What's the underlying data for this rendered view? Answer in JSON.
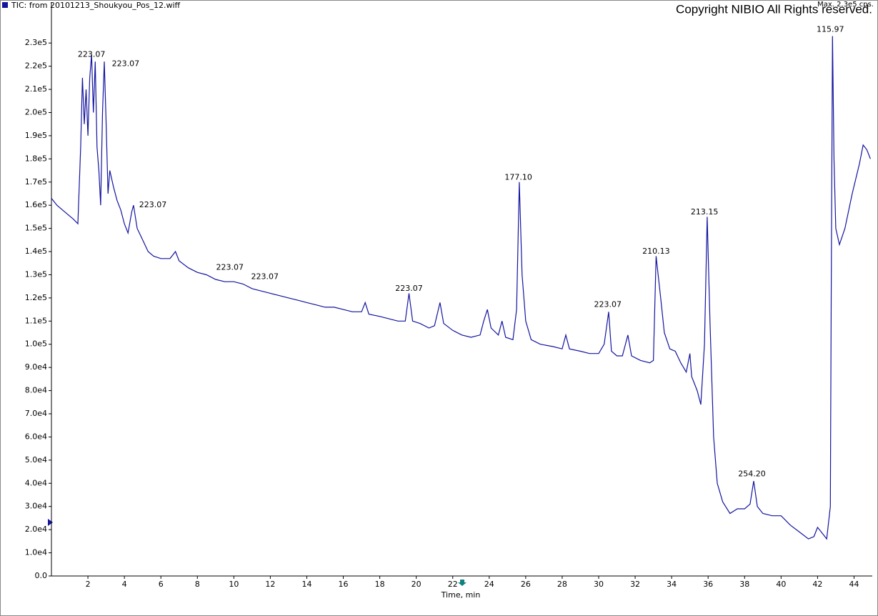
{
  "chart_data": {
    "type": "line",
    "title": "TIC: from 20101213_Shoukyou_Pos_12.wiff",
    "copyright": "Copyright NIBIO All Rights reserved.",
    "max_label": "Max. 2.3e5 cps.",
    "x_label": "Time, min",
    "xlim": [
      0,
      45
    ],
    "xticks": [
      2,
      4,
      6,
      8,
      10,
      12,
      14,
      16,
      18,
      20,
      22,
      24,
      26,
      28,
      30,
      32,
      34,
      36,
      38,
      40,
      42,
      44
    ],
    "ylim": [
      0,
      235000
    ],
    "yticks": [
      {
        "value": 0,
        "label": "0.0"
      },
      {
        "value": 10000,
        "label": "1.0e4"
      },
      {
        "value": 20000,
        "label": "2.0e4"
      },
      {
        "value": 30000,
        "label": "3.0e4"
      },
      {
        "value": 40000,
        "label": "4.0e4"
      },
      {
        "value": 50000,
        "label": "5.0e4"
      },
      {
        "value": 60000,
        "label": "6.0e4"
      },
      {
        "value": 70000,
        "label": "7.0e4"
      },
      {
        "value": 80000,
        "label": "8.0e4"
      },
      {
        "value": 90000,
        "label": "9.0e4"
      },
      {
        "value": 100000,
        "label": "1.0e5"
      },
      {
        "value": 110000,
        "label": "1.1e5"
      },
      {
        "value": 120000,
        "label": "1.2e5"
      },
      {
        "value": 130000,
        "label": "1.3e5"
      },
      {
        "value": 140000,
        "label": "1.4e5"
      },
      {
        "value": 150000,
        "label": "1.5e5"
      },
      {
        "value": 160000,
        "label": "1.6e5"
      },
      {
        "value": 170000,
        "label": "1.7e5"
      },
      {
        "value": 180000,
        "label": "1.8e5"
      },
      {
        "value": 190000,
        "label": "1.9e5"
      },
      {
        "value": 200000,
        "label": "2.0e5"
      },
      {
        "value": 210000,
        "label": "2.1e5"
      },
      {
        "value": 220000,
        "label": "2.2e5"
      },
      {
        "value": 230000,
        "label": "2.3e5"
      }
    ],
    "series": [
      {
        "name": "TIC",
        "color": "#1414a0",
        "x": [
          0.0,
          0.3,
          0.6,
          0.9,
          1.2,
          1.45,
          1.6,
          1.7,
          1.8,
          1.9,
          2.0,
          2.1,
          2.2,
          2.3,
          2.4,
          2.5,
          2.6,
          2.7,
          2.8,
          2.9,
          3.0,
          3.1,
          3.2,
          3.4,
          3.6,
          3.8,
          4.0,
          4.2,
          4.4,
          4.5,
          4.7,
          5.0,
          5.3,
          5.6,
          6.0,
          6.5,
          6.8,
          7.0,
          7.5,
          8.0,
          8.5,
          9.0,
          9.5,
          10.0,
          10.5,
          11.0,
          11.5,
          12.0,
          12.5,
          13.0,
          13.5,
          14.0,
          14.5,
          15.0,
          15.5,
          16.0,
          16.5,
          17.0,
          17.2,
          17.4,
          18.0,
          18.5,
          19.0,
          19.4,
          19.6,
          19.8,
          20.2,
          20.7,
          21.0,
          21.3,
          21.5,
          22.0,
          22.5,
          23.0,
          23.5,
          23.7,
          23.9,
          24.1,
          24.5,
          24.7,
          24.9,
          25.3,
          25.5,
          25.65,
          25.8,
          26.0,
          26.3,
          26.8,
          27.5,
          28.0,
          28.2,
          28.4,
          29.0,
          29.5,
          30.0,
          30.3,
          30.55,
          30.7,
          31.0,
          31.3,
          31.6,
          31.8,
          32.3,
          32.8,
          33.0,
          33.15,
          33.4,
          33.6,
          33.9,
          34.2,
          34.5,
          34.8,
          35.0,
          35.1,
          35.4,
          35.6,
          35.8,
          35.95,
          36.1,
          36.3,
          36.5,
          36.8,
          37.2,
          37.6,
          38.0,
          38.3,
          38.5,
          38.7,
          39.0,
          39.5,
          40.0,
          40.5,
          41.0,
          41.5,
          41.8,
          42.0,
          42.3,
          42.5,
          42.7,
          42.75,
          42.82,
          42.9,
          43.0,
          43.2,
          43.5,
          43.9,
          44.3,
          44.5,
          44.7,
          44.9
        ],
        "values": [
          163000,
          160000,
          158000,
          156000,
          154000,
          152000,
          185000,
          215000,
          195000,
          210000,
          190000,
          215000,
          225000,
          200000,
          222000,
          185000,
          175000,
          160000,
          200000,
          222000,
          195000,
          165000,
          175000,
          168000,
          162000,
          158000,
          152000,
          148000,
          157000,
          160000,
          150000,
          145000,
          140000,
          138000,
          137000,
          137000,
          140000,
          136000,
          133000,
          131000,
          130000,
          128000,
          127000,
          127000,
          126000,
          124000,
          123000,
          122000,
          121000,
          120000,
          119000,
          118000,
          117000,
          116000,
          116000,
          115000,
          114000,
          114000,
          118000,
          113000,
          112000,
          111000,
          110000,
          110000,
          122000,
          110000,
          109000,
          107000,
          108000,
          118000,
          109000,
          106000,
          104000,
          103000,
          104000,
          110000,
          115000,
          107000,
          104000,
          110000,
          103000,
          102000,
          115000,
          170000,
          130000,
          110000,
          102000,
          100000,
          99000,
          98000,
          104000,
          98000,
          97000,
          96000,
          96000,
          100000,
          114000,
          97000,
          95000,
          95000,
          104000,
          95000,
          93000,
          92000,
          93000,
          138000,
          120000,
          105000,
          98000,
          97000,
          92000,
          88000,
          96000,
          86000,
          80000,
          74000,
          100000,
          155000,
          110000,
          60000,
          40000,
          32000,
          27000,
          29000,
          29000,
          31000,
          41000,
          30000,
          27000,
          26000,
          26000,
          22000,
          19000,
          16000,
          17000,
          21000,
          18000,
          16000,
          30000,
          120000,
          233000,
          180000,
          150000,
          143000,
          150000,
          165000,
          178000,
          186000,
          184000,
          180000
        ]
      }
    ],
    "annotations": [
      {
        "text": "223.07",
        "x": 2.2,
        "y": 225000
      },
      {
        "text": "223.07",
        "x": 4.07,
        "y": 221000
      },
      {
        "text": "223.07",
        "x": 5.56,
        "y": 160000
      },
      {
        "text": "223.07",
        "x": 9.78,
        "y": 133000
      },
      {
        "text": "223.07",
        "x": 11.7,
        "y": 129000
      },
      {
        "text": "223.07",
        "x": 19.6,
        "y": 124000
      },
      {
        "text": "177.10",
        "x": 25.6,
        "y": 172000
      },
      {
        "text": "223.07",
        "x": 30.5,
        "y": 117000
      },
      {
        "text": "210.13",
        "x": 33.15,
        "y": 140000
      },
      {
        "text": "213.15",
        "x": 35.8,
        "y": 157000
      },
      {
        "text": "254.20",
        "x": 38.4,
        "y": 44000
      },
      {
        "text": "115.97",
        "x": 42.7,
        "y": 235800
      }
    ]
  }
}
